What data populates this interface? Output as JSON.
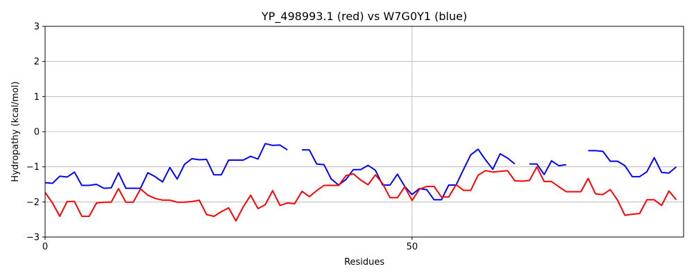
{
  "chart_data": {
    "type": "line",
    "title": "YP_498993.1 (red) vs W7G0Y1 (blue)",
    "xlabel": "Residues",
    "ylabel": "Hydropathy (kcal/mol)",
    "xlim": [
      0,
      87
    ],
    "ylim": [
      -3,
      3
    ],
    "xticks": [
      0,
      50
    ],
    "xtick_labels": [
      "0",
      "50"
    ],
    "yticks": [
      -3,
      -2,
      -1,
      0,
      1,
      2,
      3
    ],
    "ytick_labels": [
      "−3",
      "−2",
      "−1",
      "0",
      "1",
      "2",
      "3"
    ],
    "grid": true,
    "grid_color": "#b0b0b0",
    "series": [
      {
        "color": "#0000ff",
        "x": [
          0,
          1,
          2,
          3,
          4,
          5,
          6,
          7,
          8,
          9,
          10,
          11,
          12,
          13,
          14,
          15,
          16,
          17,
          18,
          19,
          20,
          21,
          22,
          23,
          24,
          25,
          26,
          27,
          28,
          29,
          30,
          31,
          32,
          33,
          34,
          35,
          36,
          37,
          38,
          39,
          40,
          41,
          42,
          43,
          44,
          45,
          46,
          47,
          48,
          49,
          50,
          51,
          52,
          53,
          54,
          55,
          56,
          57,
          58,
          59,
          60,
          61,
          62,
          63,
          64,
          65,
          66,
          67,
          68,
          69,
          70,
          71,
          72,
          73,
          74,
          75,
          76,
          77,
          78,
          79,
          80,
          81,
          82,
          83,
          84,
          85,
          86
        ],
        "y": [
          -1.45,
          -1.47,
          -1.27,
          -1.29,
          -1.15,
          -1.53,
          -1.53,
          -1.5,
          -1.61,
          -1.6,
          -1.17,
          -1.61,
          -1.61,
          -1.61,
          -1.17,
          -1.28,
          -1.43,
          -1.02,
          -1.35,
          -0.93,
          -0.77,
          -0.8,
          -0.79,
          -1.23,
          -1.23,
          -0.81,
          -0.81,
          -0.81,
          -0.7,
          -0.78,
          -0.34,
          -0.39,
          -0.38,
          -0.52,
          null,
          -0.52,
          -0.52,
          -0.92,
          -0.94,
          -1.35,
          -1.52,
          -1.36,
          -1.08,
          -1.08,
          -0.96,
          -1.1,
          -1.52,
          -1.52,
          -1.21,
          -1.56,
          -1.79,
          -1.62,
          -1.65,
          -1.94,
          -1.94,
          -1.52,
          -1.52,
          -1.08,
          -0.66,
          -0.5,
          -0.8,
          -1.07,
          -0.63,
          -0.75,
          -0.92,
          null,
          -0.92,
          -0.92,
          -1.22,
          -0.83,
          -0.97,
          -0.94,
          null,
          null,
          -0.54,
          -0.54,
          -0.56,
          -0.84,
          -0.84,
          -0.97,
          -1.28,
          -1.28,
          -1.14,
          -0.74,
          -1.16,
          -1.18,
          -1.0
        ]
      },
      {
        "color": "#ff0000",
        "x": [
          0,
          1,
          2,
          3,
          4,
          5,
          6,
          7,
          8,
          9,
          10,
          11,
          12,
          13,
          14,
          15,
          16,
          17,
          18,
          19,
          20,
          21,
          22,
          23,
          24,
          25,
          26,
          27,
          28,
          29,
          30,
          31,
          32,
          33,
          34,
          35,
          36,
          37,
          38,
          39,
          40,
          41,
          42,
          43,
          44,
          45,
          46,
          47,
          48,
          49,
          50,
          51,
          52,
          53,
          54,
          55,
          56,
          57,
          58,
          59,
          60,
          61,
          62,
          63,
          64,
          65,
          66,
          67,
          68,
          69,
          70,
          71,
          72,
          73,
          74,
          75,
          76,
          77,
          78,
          79,
          80,
          81,
          82,
          83,
          84,
          85,
          86
        ],
        "y": [
          -1.73,
          -2.03,
          -2.41,
          -1.99,
          -1.99,
          -2.41,
          -2.41,
          -2.03,
          -2.01,
          -2.01,
          -1.62,
          -2.01,
          -2.01,
          -1.63,
          -1.81,
          -1.9,
          -1.95,
          -1.95,
          -2.01,
          -2.01,
          -1.99,
          -1.95,
          -2.36,
          -2.41,
          -2.28,
          -2.17,
          -2.54,
          -2.14,
          -1.81,
          -2.19,
          -2.08,
          -1.68,
          -2.1,
          -2.03,
          -2.05,
          -1.7,
          -1.85,
          -1.68,
          -1.53,
          -1.53,
          -1.53,
          -1.25,
          -1.2,
          -1.38,
          -1.51,
          -1.23,
          -1.48,
          -1.88,
          -1.88,
          -1.57,
          -1.96,
          -1.64,
          -1.56,
          -1.56,
          -1.86,
          -1.86,
          -1.51,
          -1.67,
          -1.67,
          -1.24,
          -1.11,
          -1.15,
          -1.13,
          -1.11,
          -1.4,
          -1.41,
          -1.39,
          -1.0,
          -1.42,
          -1.42,
          -1.57,
          -1.71,
          -1.71,
          -1.71,
          -1.33,
          -1.77,
          -1.79,
          -1.65,
          -1.95,
          -2.38,
          -2.35,
          -2.33,
          -1.94,
          -1.94,
          -2.1,
          -1.69,
          -1.94
        ]
      }
    ]
  }
}
